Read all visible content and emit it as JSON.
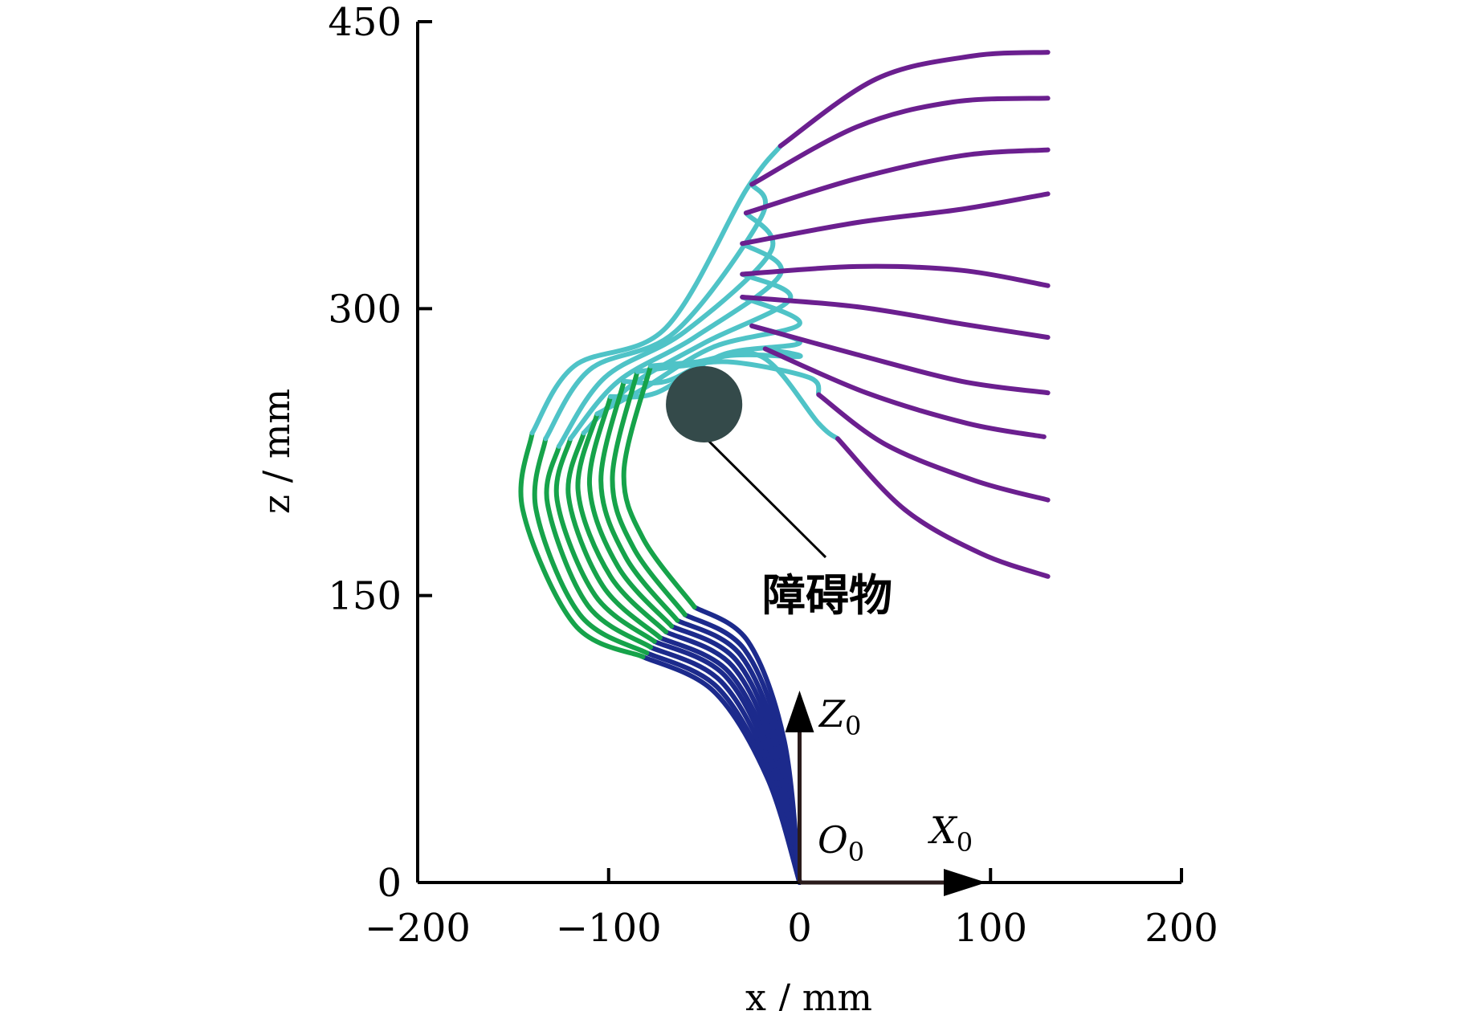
{
  "chart_data": {
    "type": "line",
    "xlabel": "x / mm",
    "ylabel": "z / mm",
    "xlim": [
      -200,
      200
    ],
    "ylim": [
      0,
      450
    ],
    "xticks": [
      -200,
      -100,
      0,
      100,
      200
    ],
    "xtick_labels": [
      "−200",
      "−100",
      "0",
      "100",
      "200"
    ],
    "yticks": [
      0,
      150,
      300,
      450
    ],
    "ytick_labels": [
      "0",
      "150",
      "300",
      "450"
    ],
    "grid": false,
    "legend": "none",
    "segment_colors": {
      "segment1": "#1c2a8c",
      "segment2": "#16a34a",
      "segment3": "#4fc3c7",
      "segment4": "#6b1f8f"
    },
    "series": [
      {
        "s1": [
          [
            0,
            0
          ],
          [
            -17,
            55
          ],
          [
            -45,
            100
          ],
          [
            -82,
            118
          ]
        ],
        "s2": [
          [
            -82,
            118
          ],
          [
            -118,
            135
          ],
          [
            -145,
            195
          ],
          [
            -140,
            235
          ]
        ],
        "s3": [
          [
            -140,
            235
          ],
          [
            -118,
            270
          ],
          [
            -70,
            290
          ],
          [
            -28,
            362
          ],
          [
            -10,
            385
          ]
        ],
        "s4": [
          [
            -10,
            385
          ],
          [
            40,
            420
          ],
          [
            90,
            432
          ],
          [
            130,
            434
          ]
        ]
      },
      {
        "s1": [
          [
            0,
            0
          ],
          [
            -16,
            56
          ],
          [
            -43,
            102
          ],
          [
            -80,
            120
          ]
        ],
        "s2": [
          [
            -80,
            120
          ],
          [
            -115,
            140
          ],
          [
            -138,
            195
          ],
          [
            -133,
            232
          ]
        ],
        "s3": [
          [
            -133,
            232
          ],
          [
            -110,
            268
          ],
          [
            -65,
            288
          ],
          [
            -20,
            348
          ],
          [
            -25,
            365
          ]
        ],
        "s4": [
          [
            -25,
            365
          ],
          [
            30,
            395
          ],
          [
            80,
            408
          ],
          [
            130,
            410
          ]
        ]
      },
      {
        "s1": [
          [
            0,
            0
          ],
          [
            -15,
            58
          ],
          [
            -41,
            105
          ],
          [
            -78,
            123
          ]
        ],
        "s2": [
          [
            -78,
            123
          ],
          [
            -111,
            145
          ],
          [
            -132,
            198
          ],
          [
            -126,
            228
          ]
        ],
        "s3": [
          [
            -126,
            228
          ],
          [
            -102,
            264
          ],
          [
            -60,
            288
          ],
          [
            -15,
            330
          ],
          [
            -28,
            350
          ]
        ],
        "s4": [
          [
            -28,
            350
          ],
          [
            30,
            368
          ],
          [
            85,
            380
          ],
          [
            130,
            383
          ]
        ]
      },
      {
        "s1": [
          [
            0,
            0
          ],
          [
            -14,
            60
          ],
          [
            -39,
            108
          ],
          [
            -76,
            126
          ]
        ],
        "s2": [
          [
            -76,
            126
          ],
          [
            -107,
            150
          ],
          [
            -127,
            200
          ],
          [
            -120,
            232
          ]
        ],
        "s3": [
          [
            -120,
            232
          ],
          [
            -95,
            262
          ],
          [
            -55,
            285
          ],
          [
            -10,
            318
          ],
          [
            -30,
            334
          ]
        ],
        "s4": [
          [
            -30,
            334
          ],
          [
            30,
            345
          ],
          [
            85,
            352
          ],
          [
            130,
            360
          ]
        ]
      },
      {
        "s1": [
          [
            0,
            0
          ],
          [
            -13,
            62
          ],
          [
            -37,
            110
          ],
          [
            -73,
            128
          ]
        ],
        "s2": [
          [
            -73,
            128
          ],
          [
            -103,
            155
          ],
          [
            -121,
            202
          ],
          [
            -113,
            235
          ]
        ],
        "s3": [
          [
            -113,
            235
          ],
          [
            -88,
            260
          ],
          [
            -50,
            282
          ],
          [
            -5,
            305
          ],
          [
            -30,
            318
          ]
        ],
        "s4": [
          [
            -30,
            318
          ],
          [
            30,
            322
          ],
          [
            85,
            320
          ],
          [
            130,
            312
          ]
        ]
      },
      {
        "s1": [
          [
            0,
            0
          ],
          [
            -12,
            64
          ],
          [
            -35,
            113
          ],
          [
            -70,
            131
          ]
        ],
        "s2": [
          [
            -70,
            131
          ],
          [
            -99,
            160
          ],
          [
            -116,
            205
          ],
          [
            -106,
            245
          ]
        ],
        "s3": [
          [
            -106,
            245
          ],
          [
            -82,
            258
          ],
          [
            -45,
            280
          ],
          [
            0,
            292
          ],
          [
            -30,
            306
          ]
        ],
        "s4": [
          [
            -30,
            306
          ],
          [
            30,
            301
          ],
          [
            85,
            292
          ],
          [
            130,
            285
          ]
        ]
      },
      {
        "s1": [
          [
            0,
            0
          ],
          [
            -11,
            66
          ],
          [
            -33,
            116
          ],
          [
            -67,
            134
          ]
        ],
        "s2": [
          [
            -67,
            134
          ],
          [
            -95,
            165
          ],
          [
            -110,
            208
          ],
          [
            -99,
            254
          ]
        ],
        "s3": [
          [
            -99,
            254
          ],
          [
            -75,
            256
          ],
          [
            -40,
            276
          ],
          [
            0,
            282
          ],
          [
            -25,
            291
          ]
        ],
        "s4": [
          [
            -25,
            291
          ],
          [
            30,
            276
          ],
          [
            85,
            262
          ],
          [
            130,
            256
          ]
        ]
      },
      {
        "s1": [
          [
            0,
            0
          ],
          [
            -10,
            68
          ],
          [
            -31,
            119
          ],
          [
            -64,
            137
          ]
        ],
        "s2": [
          [
            -64,
            137
          ],
          [
            -91,
            170
          ],
          [
            -104,
            210
          ],
          [
            -92,
            262
          ]
        ],
        "s3": [
          [
            -92,
            262
          ],
          [
            -70,
            262
          ],
          [
            -40,
            275
          ],
          [
            0,
            275
          ],
          [
            -18,
            279
          ]
        ],
        "s4": [
          [
            -18,
            279
          ],
          [
            35,
            256
          ],
          [
            88,
            240
          ],
          [
            128,
            233
          ]
        ]
      },
      {
        "s1": [
          [
            0,
            0
          ],
          [
            -9,
            71
          ],
          [
            -29,
            122
          ],
          [
            -60,
            140
          ]
        ],
        "s2": [
          [
            -60,
            140
          ],
          [
            -87,
            175
          ],
          [
            -98,
            212
          ],
          [
            -85,
            267
          ]
        ],
        "s3": [
          [
            -85,
            267
          ],
          [
            -62,
            270
          ],
          [
            -35,
            272
          ],
          [
            5,
            264
          ],
          [
            10,
            255
          ]
        ],
        "s4": [
          [
            10,
            255
          ],
          [
            45,
            229
          ],
          [
            92,
            210
          ],
          [
            130,
            200
          ]
        ]
      },
      {
        "s1": [
          [
            0,
            0
          ],
          [
            -8,
            74
          ],
          [
            -27,
            126
          ],
          [
            -55,
            144
          ]
        ],
        "s2": [
          [
            -55,
            144
          ],
          [
            -82,
            180
          ],
          [
            -92,
            215
          ],
          [
            -78,
            270
          ]
        ],
        "s3": [
          [
            -78,
            270
          ],
          [
            -55,
            272
          ],
          [
            -20,
            275
          ],
          [
            10,
            240
          ],
          [
            20,
            232
          ]
        ],
        "s4": [
          [
            20,
            232
          ],
          [
            55,
            195
          ],
          [
            95,
            172
          ],
          [
            130,
            160
          ]
        ]
      }
    ],
    "obstacle": {
      "center": [
        -50,
        250
      ],
      "radius": 20,
      "color": "#344a4a"
    },
    "annotation": "障碍物",
    "frame": {
      "z_label": "Z",
      "x_label": "X",
      "origin_label": "O",
      "subscript": "0"
    }
  }
}
